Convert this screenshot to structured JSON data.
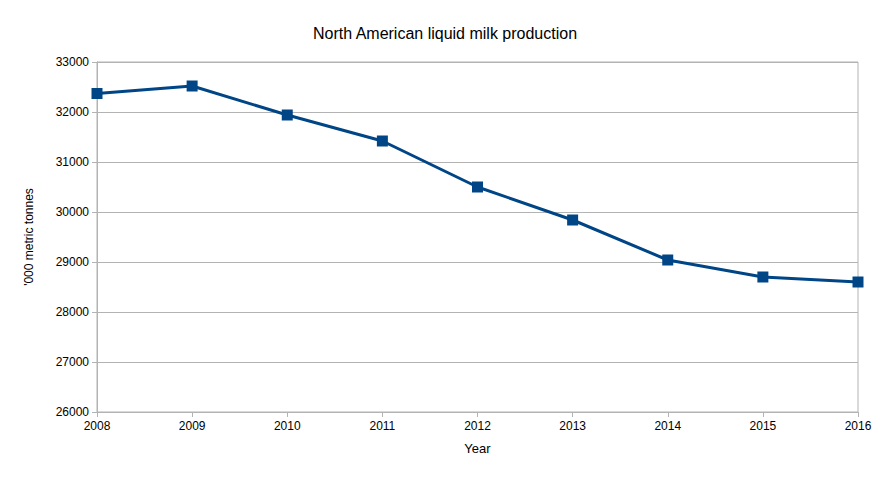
{
  "chart_data": {
    "type": "line",
    "title": "North American liquid milk production",
    "x_label": "Year",
    "y_label": "'000 metric tonnes",
    "x": [
      2008,
      2009,
      2010,
      2011,
      2012,
      2013,
      2014,
      2015,
      2016
    ],
    "values": [
      32370,
      32520,
      31940,
      31420,
      30500,
      29840,
      29040,
      28700,
      28600
    ],
    "color": "#004586",
    "marker": "square",
    "xlim": [
      2008,
      2016
    ],
    "xticks": [
      2008,
      2009,
      2010,
      2011,
      2012,
      2013,
      2014,
      2015,
      2016
    ],
    "ylim": [
      26000,
      33000
    ],
    "yticks": [
      26000,
      27000,
      28000,
      29000,
      30000,
      31000,
      32000,
      33000
    ],
    "grid": true
  }
}
